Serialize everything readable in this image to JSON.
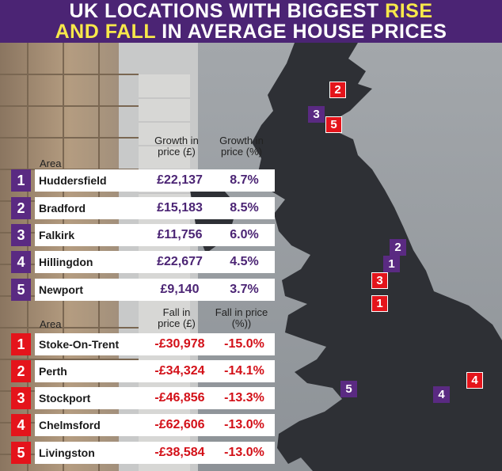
{
  "title": {
    "line1_a": "UK LOCATIONS WITH BIGGEST ",
    "line1_b": "RISE",
    "line2_a": "AND FALL",
    "line2_b": " IN AVERAGE HOUSE PRICES"
  },
  "colors": {
    "title_bg": "#4b2474",
    "highlight": "#f7e84a",
    "rise": "#5a2a82",
    "fall": "#e4141b"
  },
  "rise": {
    "headers": {
      "area": "Area",
      "value": "Growth in price (£)",
      "pct": "Growth in price (%)"
    },
    "rows": [
      {
        "rank": "1",
        "area": "Huddersfield",
        "value": "£22,137",
        "pct": "8.7%"
      },
      {
        "rank": "2",
        "area": "Bradford",
        "value": "£15,183",
        "pct": "8.5%"
      },
      {
        "rank": "3",
        "area": "Falkirk",
        "value": "£11,756",
        "pct": "6.0%"
      },
      {
        "rank": "4",
        "area": "Hillingdon",
        "value": "£22,677",
        "pct": "4.5%"
      },
      {
        "rank": "5",
        "area": "Newport",
        "value": "£9,140",
        "pct": "3.7%"
      }
    ]
  },
  "fall": {
    "headers": {
      "area": "Area",
      "value": "Fall in price (£)",
      "pct": "Fall in price (%))"
    },
    "rows": [
      {
        "rank": "1",
        "area": "Stoke-On-Trent",
        "value": "-£30,978",
        "pct": "-15.0%"
      },
      {
        "rank": "2",
        "area": "Perth",
        "value": "-£34,324",
        "pct": "-14.1%"
      },
      {
        "rank": "3",
        "area": "Stockport",
        "value": "-£46,856",
        "pct": "-13.3%"
      },
      {
        "rank": "4",
        "area": "Chelmsford",
        "value": "-£62,606",
        "pct": "-13.0%"
      },
      {
        "rank": "5",
        "area": "Livingston",
        "value": "-£38,584",
        "pct": "-13.0%"
      }
    ]
  },
  "map_markers": [
    {
      "label": "2",
      "kind": "fall"
    },
    {
      "label": "3",
      "kind": "rise"
    },
    {
      "label": "5",
      "kind": "fall"
    },
    {
      "label": "2",
      "kind": "rise"
    },
    {
      "label": "1",
      "kind": "rise"
    },
    {
      "label": "3",
      "kind": "fall"
    },
    {
      "label": "1",
      "kind": "fall"
    },
    {
      "label": "5",
      "kind": "rise"
    },
    {
      "label": "4",
      "kind": "rise"
    },
    {
      "label": "4",
      "kind": "fall"
    }
  ]
}
